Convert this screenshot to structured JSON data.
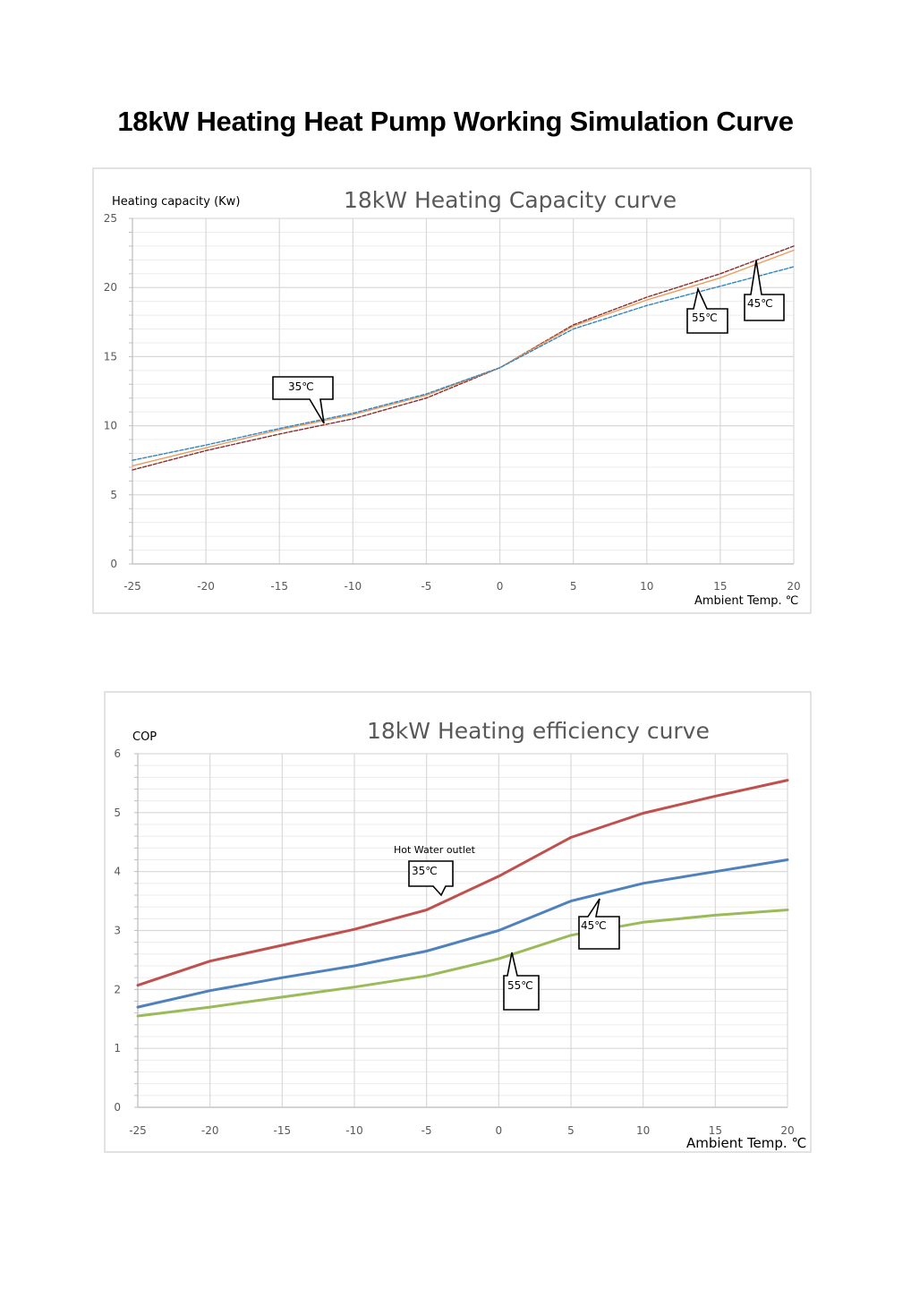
{
  "page": {
    "title": "18kW Heating Heat Pump Working Simulation Curve"
  },
  "chart_data": [
    {
      "type": "line",
      "title": "18kW Heating Capacity curve",
      "ylabel": "Heating capacity (Kw)",
      "xlabel": "Ambient Temp. ℃",
      "xlim": [
        -25,
        20
      ],
      "ylim": [
        0,
        25
      ],
      "x_ticks": [
        -25,
        -20,
        -15,
        -10,
        -5,
        0,
        5,
        10,
        15,
        20
      ],
      "y_ticks": [
        0,
        5,
        10,
        15,
        20,
        25
      ],
      "grid": true,
      "series": [
        {
          "name": "35℃",
          "color": "#8B2C2C",
          "style": "dashed",
          "x": [
            -25,
            -20,
            -15,
            -10,
            -5,
            0,
            5,
            10,
            15,
            20
          ],
          "y": [
            6.8,
            8.2,
            9.4,
            10.5,
            12.0,
            14.2,
            17.3,
            19.3,
            21.0,
            23.0
          ]
        },
        {
          "name": "45℃",
          "color": "#ED9B5B",
          "style": "solid",
          "x": [
            -25,
            -20,
            -15,
            -10,
            -5,
            0,
            5,
            10,
            15,
            20
          ],
          "y": [
            7.1,
            8.4,
            9.7,
            10.8,
            12.2,
            14.2,
            17.2,
            19.1,
            20.7,
            22.7
          ]
        },
        {
          "name": "55℃",
          "color": "#2E86C1",
          "style": "dashed",
          "x": [
            -25,
            -20,
            -15,
            -10,
            -5,
            0,
            5,
            10,
            15,
            20
          ],
          "y": [
            7.5,
            8.6,
            9.8,
            10.9,
            12.3,
            14.2,
            17.0,
            18.7,
            20.1,
            21.5
          ]
        }
      ],
      "annotations": [
        {
          "text": "35℃"
        },
        {
          "text": "55℃"
        },
        {
          "text": "45℃"
        }
      ]
    },
    {
      "type": "line",
      "title": "18kW  Heating efficiency curve",
      "ylabel": "COP",
      "xlabel": "Ambient Temp.  ℃",
      "xlim": [
        -25,
        20
      ],
      "ylim": [
        0,
        6
      ],
      "x_ticks": [
        -25,
        -20,
        -15,
        -10,
        -5,
        0,
        5,
        10,
        15,
        20
      ],
      "y_ticks": [
        0,
        1,
        2,
        3,
        4,
        5,
        6
      ],
      "grid": true,
      "series": [
        {
          "name": "35℃",
          "color": "#C0504D",
          "x": [
            -25,
            -20,
            -15,
            -10,
            -5,
            0,
            5,
            10,
            15,
            20
          ],
          "y": [
            2.07,
            2.48,
            2.75,
            3.02,
            3.35,
            3.92,
            4.58,
            4.99,
            5.28,
            5.55
          ]
        },
        {
          "name": "45℃",
          "color": "#4F81BD",
          "x": [
            -25,
            -20,
            -15,
            -10,
            -5,
            0,
            5,
            10,
            15,
            20
          ],
          "y": [
            1.7,
            1.98,
            2.2,
            2.4,
            2.65,
            3.0,
            3.5,
            3.8,
            4.0,
            4.2
          ]
        },
        {
          "name": "55℃",
          "color": "#9BBB59",
          "x": [
            -25,
            -20,
            -15,
            -10,
            -5,
            0,
            5,
            10,
            15,
            20
          ],
          "y": [
            1.55,
            1.7,
            1.87,
            2.04,
            2.23,
            2.52,
            2.92,
            3.14,
            3.26,
            3.35
          ]
        }
      ],
      "annotations": [
        {
          "text": "Hot Water outlet"
        },
        {
          "text": "35℃"
        },
        {
          "text": "45℃"
        },
        {
          "text": "55℃"
        }
      ]
    }
  ]
}
